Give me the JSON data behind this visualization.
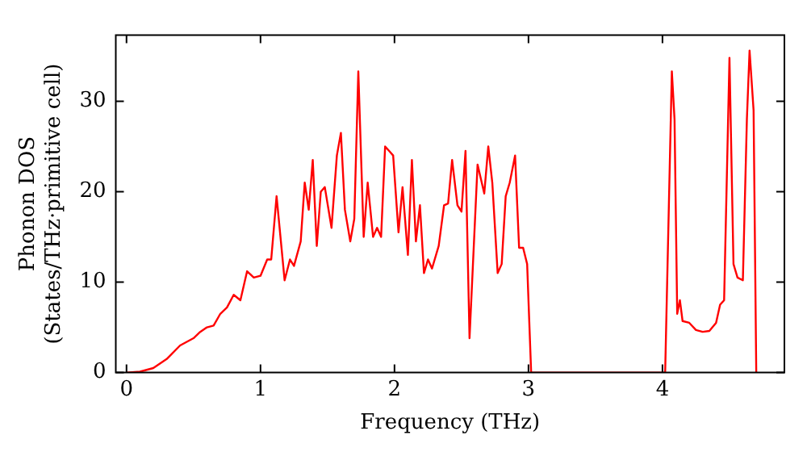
{
  "chart_data": {
    "type": "line",
    "xlabel": "Frequency (THz)",
    "ylabel": "Phonon DOS\n(States/THz·primitive cell)",
    "xlim": [
      -0.08,
      4.91
    ],
    "xticks": [
      0,
      1,
      2,
      3,
      4
    ],
    "ylim": [
      0,
      37.3
    ],
    "yticks": [
      0,
      10,
      20,
      30
    ],
    "grid": false,
    "legend": false,
    "marker": "none",
    "line_style": "solid",
    "x": [
      0,
      0.1,
      0.2,
      0.3,
      0.4,
      0.5,
      0.55,
      0.6,
      0.65,
      0.7,
      0.75,
      0.8,
      0.85,
      0.9,
      0.95,
      1.0,
      1.05,
      1.08,
      1.12,
      1.18,
      1.22,
      1.25,
      1.3,
      1.33,
      1.36,
      1.39,
      1.42,
      1.45,
      1.48,
      1.53,
      1.57,
      1.6,
      1.63,
      1.67,
      1.7,
      1.73,
      1.77,
      1.8,
      1.84,
      1.87,
      1.9,
      1.93,
      1.96,
      1.99,
      2.03,
      2.06,
      2.1,
      2.13,
      2.16,
      2.19,
      2.22,
      2.25,
      2.28,
      2.33,
      2.37,
      2.4,
      2.43,
      2.47,
      2.5,
      2.53,
      2.56,
      2.62,
      2.67,
      2.7,
      2.73,
      2.77,
      2.8,
      2.83,
      2.86,
      2.9,
      2.93,
      2.96,
      2.99,
      3.02,
      4.02,
      4.07,
      4.09,
      4.11,
      4.13,
      4.15,
      4.2,
      4.25,
      4.3,
      4.35,
      4.4,
      4.43,
      4.46,
      4.5,
      4.53,
      4.56,
      4.6,
      4.63,
      4.65,
      4.68,
      4.7
    ],
    "series": [
      {
        "color": "#ff0000",
        "values": [
          0,
          0.1,
          0.5,
          1.5,
          3,
          3.8,
          4.5,
          5,
          5.2,
          6.5,
          7.2,
          8.6,
          8,
          11.2,
          10.5,
          10.7,
          12.5,
          12.5,
          19.5,
          10.2,
          12.5,
          11.8,
          14.5,
          21,
          18,
          23.5,
          14,
          20,
          20.5,
          16,
          24,
          26.5,
          18,
          14.5,
          17,
          33.3,
          15,
          21,
          15,
          16,
          15,
          25,
          24.5,
          24,
          15.5,
          20.5,
          13,
          23.5,
          14.5,
          18.5,
          11,
          12.5,
          11.5,
          14,
          18.5,
          18.7,
          23.5,
          18.5,
          17.8,
          24.5,
          3.8,
          23,
          19.8,
          25,
          21,
          11,
          12,
          19.5,
          21,
          24,
          13.8,
          13.8,
          12,
          0,
          0,
          33.3,
          28,
          6.5,
          8,
          5.7,
          5.5,
          4.7,
          4.5,
          4.6,
          5.5,
          7.5,
          8,
          34.8,
          12,
          10.5,
          10.2,
          28,
          35.6,
          29,
          0
        ]
      }
    ]
  }
}
